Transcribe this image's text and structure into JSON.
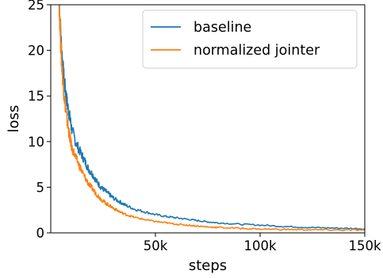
{
  "chart_data": {
    "type": "line",
    "xlabel": "steps",
    "ylabel": "loss",
    "xlim": [
      0,
      150000
    ],
    "ylim": [
      0,
      25
    ],
    "grid": false,
    "legend_position": "top-right",
    "x_ticks": [
      {
        "value": 50000,
        "label": "50k"
      },
      {
        "value": 100000,
        "label": "100k"
      },
      {
        "value": 150000,
        "label": "150k"
      }
    ],
    "y_ticks": [
      {
        "value": 0,
        "label": "0"
      },
      {
        "value": 5,
        "label": "5"
      },
      {
        "value": 10,
        "label": "10"
      },
      {
        "value": 15,
        "label": "15"
      },
      {
        "value": 20,
        "label": "20"
      },
      {
        "value": 25,
        "label": "25"
      }
    ],
    "series": [
      {
        "name": "baseline",
        "color": "#1f77b4",
        "x": [
          4000,
          5000,
          6000,
          7000,
          8000,
          9000,
          10000,
          12000,
          14000,
          16000,
          18000,
          20000,
          22000,
          24000,
          26000,
          28000,
          30000,
          33000,
          36000,
          40000,
          45000,
          50000,
          55000,
          60000,
          65000,
          70000,
          75000,
          80000,
          90000,
          100000,
          110000,
          120000,
          130000,
          140000,
          150000
        ],
        "y": [
          25.5,
          20.8,
          17.6,
          15.6,
          14.0,
          12.8,
          11.4,
          9.9,
          8.9,
          8.0,
          7.0,
          6.4,
          5.6,
          5.0,
          4.6,
          4.2,
          3.8,
          3.4,
          3.0,
          2.6,
          2.3,
          2.0,
          1.8,
          1.65,
          1.5,
          1.35,
          1.2,
          1.1,
          0.95,
          0.85,
          0.72,
          0.62,
          0.55,
          0.5,
          0.45
        ]
      },
      {
        "name": "normalized jointer",
        "color": "#ff7f0e",
        "x": [
          4000,
          5000,
          6000,
          7000,
          8000,
          9000,
          10000,
          12000,
          14000,
          16000,
          18000,
          20000,
          22000,
          24000,
          26000,
          28000,
          30000,
          33000,
          36000,
          40000,
          45000,
          50000,
          55000,
          60000,
          65000,
          70000,
          75000,
          80000,
          90000,
          100000,
          110000,
          120000,
          130000,
          140000,
          150000
        ],
        "y": [
          25.5,
          19.5,
          16.0,
          13.8,
          12.0,
          10.6,
          9.4,
          8.2,
          7.2,
          6.2,
          5.4,
          4.8,
          4.2,
          3.7,
          3.3,
          3.0,
          2.7,
          2.3,
          2.0,
          1.7,
          1.45,
          1.25,
          1.1,
          0.95,
          0.85,
          0.75,
          0.65,
          0.6,
          0.5,
          0.42,
          0.38,
          0.35,
          0.33,
          0.31,
          0.3
        ]
      }
    ]
  }
}
